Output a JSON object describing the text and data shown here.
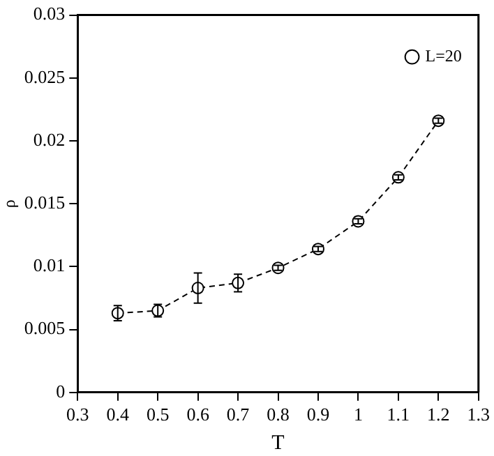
{
  "chart_data": {
    "type": "line",
    "xlabel": "T",
    "ylabel": "ρ",
    "x": [
      0.4,
      0.5,
      0.6,
      0.7,
      0.8,
      0.9,
      1.0,
      1.1,
      1.2
    ],
    "series": [
      {
        "name": "L=20",
        "color": "#000000",
        "values": [
          0.0063,
          0.0065,
          0.0083,
          0.0087,
          0.0099,
          0.0114,
          0.0136,
          0.0171,
          0.0216
        ],
        "errors": [
          0.0006,
          0.0005,
          0.0012,
          0.0007,
          0.0002,
          0.0002,
          0.0002,
          0.0002,
          0.0002
        ]
      }
    ],
    "xlim": [
      0.3,
      1.3
    ],
    "xticks": [
      0.3,
      0.4,
      0.5,
      0.6,
      0.7,
      0.8,
      0.9,
      1,
      1.1,
      1.2,
      1.3
    ],
    "ylim": [
      0,
      0.03
    ],
    "yticks": [
      0,
      0.005,
      0.01,
      0.015,
      0.02,
      0.025,
      0.03
    ],
    "grid": false,
    "legend": "top right",
    "marker": "circle",
    "line_style": "dashed"
  }
}
